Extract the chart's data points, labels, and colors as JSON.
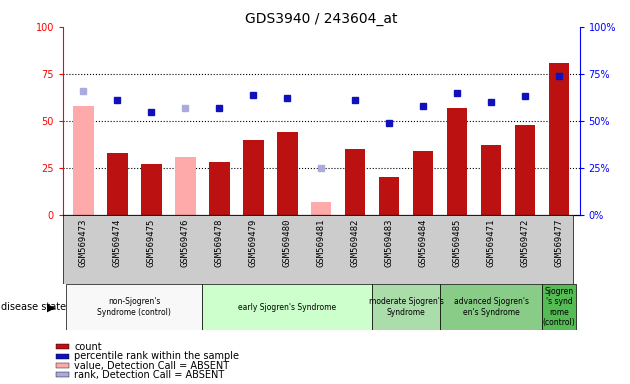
{
  "title": "GDS3940 / 243604_at",
  "samples": [
    "GSM569473",
    "GSM569474",
    "GSM569475",
    "GSM569476",
    "GSM569478",
    "GSM569479",
    "GSM569480",
    "GSM569481",
    "GSM569482",
    "GSM569483",
    "GSM569484",
    "GSM569485",
    "GSM569471",
    "GSM569472",
    "GSM569477"
  ],
  "count_values": [
    58,
    33,
    27,
    31,
    28,
    40,
    44,
    7,
    35,
    20,
    34,
    57,
    37,
    48,
    81
  ],
  "rank_values": [
    66,
    61,
    55,
    57,
    57,
    64,
    62,
    25,
    61,
    49,
    58,
    65,
    60,
    63,
    74
  ],
  "absent_flags": [
    1,
    0,
    0,
    1,
    0,
    0,
    0,
    1,
    0,
    0,
    0,
    0,
    0,
    0,
    0
  ],
  "groups": [
    {
      "label": "non-Sjogren's\nSyndrome (control)",
      "start": 0,
      "end": 4,
      "color": "#f8f8f8"
    },
    {
      "label": "early Sjogren's Syndrome",
      "start": 4,
      "end": 9,
      "color": "#ccffcc"
    },
    {
      "label": "moderate Sjogren's\nSyndrome",
      "start": 9,
      "end": 11,
      "color": "#aaddaa"
    },
    {
      "label": "advanced Sjogren's\nen's Syndrome",
      "start": 11,
      "end": 14,
      "color": "#88cc88"
    },
    {
      "label": "Sjogren\n's synd\nrome\n(control)",
      "start": 14,
      "end": 15,
      "color": "#55bb55"
    }
  ],
  "bar_color_present": "#bb1111",
  "bar_color_absent": "#ffaaaa",
  "rank_color_present": "#1111bb",
  "rank_color_absent": "#aaaadd",
  "ylim": [
    0,
    100
  ],
  "yticks": [
    0,
    25,
    50,
    75,
    100
  ],
  "bg_color": "#cccccc",
  "legend_items": [
    {
      "label": "count",
      "color": "#bb1111"
    },
    {
      "label": "percentile rank within the sample",
      "color": "#1111bb"
    },
    {
      "label": "value, Detection Call = ABSENT",
      "color": "#ffaaaa"
    },
    {
      "label": "rank, Detection Call = ABSENT",
      "color": "#aaaadd"
    }
  ]
}
